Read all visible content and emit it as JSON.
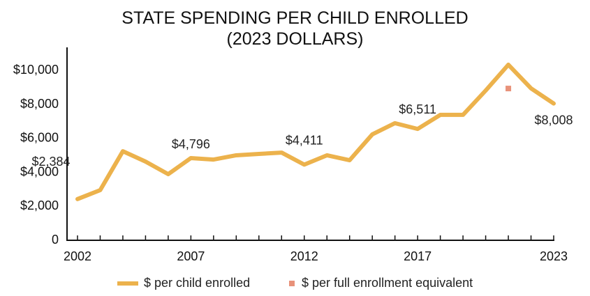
{
  "chart_data": {
    "type": "line",
    "title": "STATE SPENDING PER CHILD ENROLLED",
    "subtitle": "(2023 DOLLARS)",
    "x": [
      2002,
      2003,
      2004,
      2005,
      2006,
      2007,
      2008,
      2009,
      2010,
      2011,
      2012,
      2013,
      2014,
      2015,
      2016,
      2017,
      2018,
      2019,
      2020,
      2021,
      2022,
      2023
    ],
    "x_tick_labels": [
      "2002",
      "2007",
      "2012",
      "2017",
      "2023"
    ],
    "x_tick_values": [
      2002,
      2007,
      2012,
      2017,
      2023
    ],
    "y_tick_labels": [
      "0",
      "$2,000",
      "$4,000",
      "$6,000",
      "$8,000",
      "$10,000"
    ],
    "y_tick_values": [
      0,
      2000,
      4000,
      6000,
      8000,
      10000
    ],
    "ylim": [
      0,
      10000
    ],
    "grid": false,
    "legend_position": "bottom",
    "series": [
      {
        "name": "$ per child enrolled",
        "color": "#ECB24C",
        "values": [
          2384,
          2910,
          5200,
          4590,
          3850,
          4796,
          4710,
          4960,
          5040,
          5120,
          4411,
          4960,
          4670,
          6190,
          6850,
          6511,
          7340,
          7340,
          8770,
          10290,
          8900,
          8008
        ]
      },
      {
        "name": "$ per full enrollment equivalent",
        "color": "#E8927A",
        "points": [
          {
            "x": 2021,
            "y": 8890
          }
        ]
      }
    ],
    "data_labels": [
      {
        "x": 2002,
        "text": "$2,384"
      },
      {
        "x": 2007,
        "text": "$4,796"
      },
      {
        "x": 2012,
        "text": "$4,411"
      },
      {
        "x": 2017,
        "text": "$6,511"
      },
      {
        "x": 2023,
        "text": "$8,008"
      }
    ]
  }
}
